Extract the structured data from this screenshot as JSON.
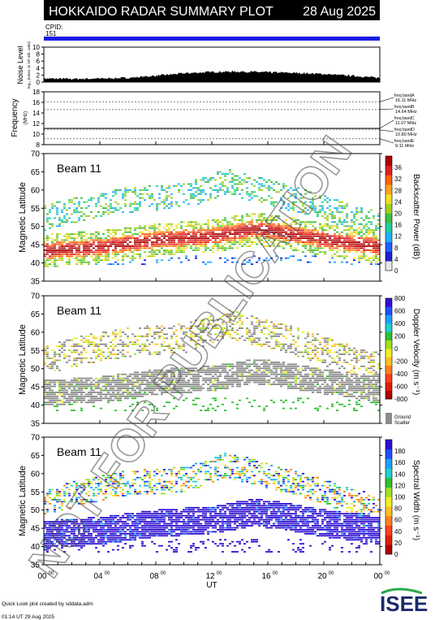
{
  "header": {
    "title": "HOKKAIDO RADAR SUMMARY PLOT",
    "date": "28 Aug 2025",
    "cpid_label": "CPID:",
    "cpid_value": "151"
  },
  "colors": {
    "header_bg": "#000000",
    "header_text": "#ffffff",
    "cpid_bar": "#1a1ae6",
    "ground_scatter": "#8c8c8c",
    "watermark": "rgba(80,80,80,0.35)"
  },
  "watermark": "NOT FOR PUBLICATION",
  "footer": {
    "credit": "Quick Look plot created by sddata.adm",
    "created": "01:14 UT 29 Aug 2025",
    "logo": "ISEE"
  },
  "x_axis": {
    "label": "UT",
    "ticks": [
      {
        "h": "00",
        "m": "00"
      },
      {
        "h": "04",
        "m": "00"
      },
      {
        "h": "08",
        "m": "00"
      },
      {
        "h": "12",
        "m": "00"
      },
      {
        "h": "16",
        "m": "00"
      },
      {
        "h": "20",
        "m": "00"
      },
      {
        "h": "00",
        "m": "00"
      }
    ]
  },
  "chart_data": [
    {
      "type": "area",
      "panel": "noise",
      "ylabel": "Noise Level",
      "ylabel_sub": "log₁₀ (noise, in 10³ arb. units)",
      "ylim": [
        0,
        10
      ],
      "yticks": [
        0,
        2,
        4,
        6,
        8,
        10
      ],
      "x_hours": [
        0,
        2,
        4,
        6,
        8,
        10,
        12,
        14,
        16,
        18,
        20,
        22,
        24
      ],
      "values": [
        1.0,
        0.9,
        1.0,
        1.2,
        1.8,
        2.5,
        2.9,
        3.0,
        2.8,
        2.6,
        2.3,
        1.8,
        1.2
      ]
    },
    {
      "type": "line",
      "panel": "frequency",
      "ylabel": "Frequency",
      "yunit": "(MHz)",
      "ylim": [
        8,
        18
      ],
      "yticks": [
        8,
        10,
        12,
        14,
        16,
        18
      ],
      "freq_bands": [
        {
          "name": "freq bandA",
          "value": "16.11 MHz",
          "mhz": 16.11
        },
        {
          "name": "freq bandB",
          "value": "14.64 MHz",
          "mhz": 14.64
        },
        {
          "name": "freq bandC",
          "value": "11.07 MHz",
          "mhz": 11.07
        },
        {
          "name": "freq bandD",
          "value": "10.80 MHz",
          "mhz": 10.8
        },
        {
          "name": "freq bandE",
          "value": "9.11 MHz",
          "mhz": 9.11
        }
      ]
    },
    {
      "type": "heatmap",
      "panel": "power",
      "beam": "Beam 11",
      "ylabel": "Magnetic Latitude",
      "ylim": [
        35,
        70
      ],
      "yticks": [
        35,
        40,
        45,
        50,
        55,
        60,
        65,
        70
      ],
      "colorbar": {
        "label": "Backscatter Power (dB)",
        "ticks": [
          0,
          4,
          8,
          12,
          16,
          20,
          24,
          28,
          32,
          36
        ]
      },
      "features": [
        {
          "desc": "main band",
          "lat_by_hour": [
            [
              0,
              43
            ],
            [
              4,
              44
            ],
            [
              8,
              46
            ],
            [
              12,
              47
            ],
            [
              15,
              49
            ],
            [
              17,
              48
            ],
            [
              20,
              46
            ],
            [
              24,
              44
            ]
          ],
          "level": "high"
        },
        {
          "desc": "upper diffuse",
          "lat_by_hour": [
            [
              2,
              55
            ],
            [
              6,
              57
            ],
            [
              10,
              58
            ],
            [
              14,
              63
            ],
            [
              18,
              58
            ],
            [
              22,
              53
            ]
          ],
          "level": "low"
        }
      ]
    },
    {
      "type": "heatmap",
      "panel": "velocity",
      "beam": "Beam 11",
      "ylabel": "Magnetic Latitude",
      "ylim": [
        35,
        70
      ],
      "yticks": [
        35,
        40,
        45,
        50,
        55,
        60,
        65,
        70
      ],
      "colorbar": {
        "label": "Doppler Velocity (m s⁻¹)",
        "ticks": [
          800,
          600,
          400,
          200,
          0,
          -200,
          -400,
          -600,
          -800
        ]
      },
      "ground_scatter_label": [
        "Ground",
        "Scatter"
      ]
    },
    {
      "type": "heatmap",
      "panel": "width",
      "beam": "Beam 11",
      "ylabel": "Magnetic Latitude",
      "ylim": [
        35,
        70
      ],
      "yticks": [
        35,
        40,
        45,
        50,
        55,
        60,
        65,
        70
      ],
      "colorbar": {
        "label": "Spectral Width (m s⁻¹)",
        "ticks": [
          0,
          20,
          40,
          60,
          80,
          100,
          120,
          140,
          160,
          180
        ]
      }
    }
  ]
}
